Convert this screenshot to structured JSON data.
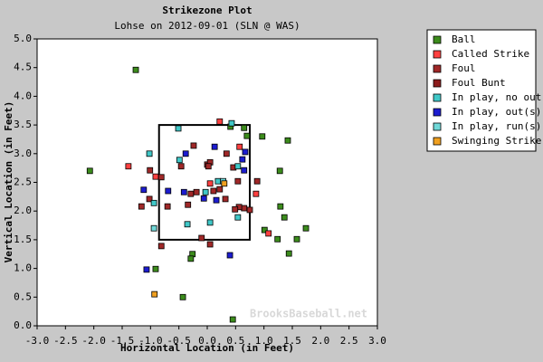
{
  "chart_data": {
    "type": "scatter",
    "title": "Strikezone Plot",
    "subtitle": "Lohse on 2012-09-01 (SLN @ WAS)",
    "x_label": "Horizontal Location (in Feet)",
    "y_label": "Vertical Location (in Feet)",
    "watermark": "BrooksBaseball.net",
    "xlim": [
      -3,
      3
    ],
    "ylim": [
      0,
      5
    ],
    "xticks": [
      {
        "value": -3,
        "label": "-3.0"
      },
      -2.5,
      {
        "value": -2,
        "label": "-2.0"
      },
      -1.5,
      {
        "value": -1,
        "label": "-1.0"
      },
      -0.5,
      {
        "value": 0,
        "label": "0.0"
      },
      0.5,
      {
        "value": 1,
        "label": "1.0"
      },
      1.5,
      {
        "value": 2,
        "label": "2.0"
      },
      2.5,
      {
        "value": 3,
        "label": "3.0"
      }
    ],
    "yticks": [
      {
        "value": 0,
        "label": "0.0"
      },
      0.5,
      {
        "value": 1,
        "label": "1.0"
      },
      1.5,
      {
        "value": 2,
        "label": "2.0"
      },
      2.5,
      {
        "value": 3,
        "label": "3.0"
      },
      3.5,
      {
        "value": 4,
        "label": "4.0"
      },
      4.5,
      {
        "value": 5,
        "label": "5.0"
      }
    ],
    "strike_zone": {
      "x": [
        -0.85,
        0.75
      ],
      "y": [
        1.5,
        3.5
      ]
    },
    "series": [
      {
        "name": "Ball",
        "color": "#3c8c1c",
        "x": [
          -1.26,
          -2.07,
          0.97,
          1.42,
          1.28,
          1.29,
          1.36,
          1.74,
          1.58,
          1.24,
          1.01,
          -0.26,
          -0.29,
          -0.43,
          0.45,
          -0.91,
          1.44,
          0.41,
          0.65,
          0.7
        ],
        "y": [
          4.46,
          2.7,
          3.3,
          3.23,
          2.7,
          2.08,
          1.89,
          1.7,
          1.51,
          1.51,
          1.67,
          1.25,
          1.17,
          0.5,
          0.11,
          0.99,
          1.26,
          3.47,
          3.45,
          3.31
        ]
      },
      {
        "name": "Called Strike",
        "color": "#ff4040",
        "x": [
          0.22,
          -1.39,
          0.86,
          1.08,
          0.57,
          -0.91,
          0.05
        ],
        "y": [
          3.56,
          2.78,
          2.3,
          1.61,
          3.12,
          2.6,
          2.48
        ]
      },
      {
        "name": "Foul",
        "color": "#a02828",
        "x": [
          -1.01,
          -0.81,
          -1.16,
          -1.02,
          -0.24,
          -0.46,
          -0.29,
          -0.19,
          0.0,
          0.05,
          0.02,
          0.34,
          0.46,
          0.75,
          0.65,
          0.56,
          0.49,
          0.32,
          0.22,
          0.54,
          0.88,
          -0.81,
          0.05,
          -0.1,
          -0.7,
          -0.34,
          0.11
        ],
        "y": [
          2.71,
          2.59,
          2.08,
          2.21,
          3.14,
          2.78,
          2.3,
          2.33,
          2.81,
          2.85,
          2.78,
          3.0,
          2.76,
          2.02,
          2.05,
          2.07,
          2.03,
          2.21,
          2.38,
          2.52,
          2.52,
          1.39,
          1.42,
          1.53,
          2.08,
          2.11,
          2.35
        ]
      },
      {
        "name": "Foul Bunt",
        "color": "#8c1c1c",
        "x": [],
        "y": []
      },
      {
        "name": "In play, no out",
        "color": "#40c8c8",
        "x": [
          -0.49,
          -1.02,
          0.05,
          -0.35,
          0.54,
          0.54,
          0.19,
          -0.03,
          -0.94,
          -0.51,
          0.43
        ],
        "y": [
          2.89,
          3.0,
          1.8,
          1.77,
          2.78,
          1.89,
          2.52,
          2.33,
          2.14,
          3.44,
          3.53
        ]
      },
      {
        "name": "In play, out(s)",
        "color": "#1c1cd0",
        "x": [
          -1.07,
          0.13,
          0.4,
          -1.12,
          -0.38,
          -0.69,
          -0.41,
          0.62,
          0.65,
          0.67,
          -0.06,
          0.16
        ],
        "y": [
          0.98,
          3.12,
          1.23,
          2.37,
          3.0,
          2.35,
          2.33,
          2.9,
          2.71,
          3.03,
          2.22,
          2.19
        ]
      },
      {
        "name": "In play, run(s)",
        "color": "#70d8d8",
        "x": [
          0.28,
          -0.94
        ],
        "y": [
          2.52,
          1.7
        ]
      },
      {
        "name": "Swinging Strike",
        "color": "#f0a020",
        "x": [
          -0.93,
          0.3
        ],
        "y": [
          0.55,
          2.48
        ]
      }
    ]
  }
}
